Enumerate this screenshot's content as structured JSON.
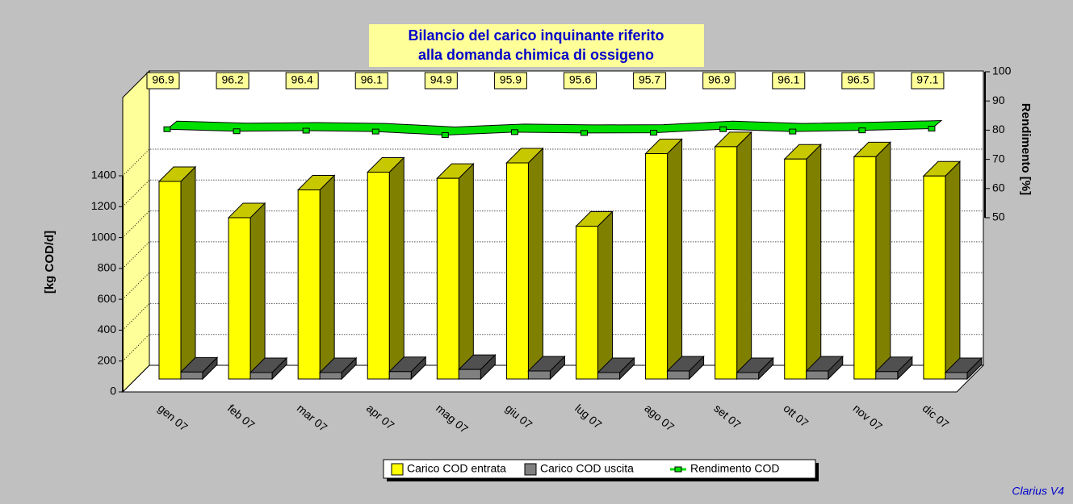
{
  "chart_data": {
    "type": "bar",
    "title": [
      "Bilancio del carico inquinante riferito",
      "alla domanda chimica di ossigeno"
    ],
    "y_label": "[kg COD/d]",
    "y2_label": "Rendimento [%]",
    "footer": "Clarius V4",
    "categories": [
      "gen 07",
      "feb 07",
      "mar 07",
      "apr 07",
      "mag 07",
      "giu 07",
      "lug 07",
      "ago 07",
      "set 07",
      "ott 07",
      "nov 07",
      "dic 07"
    ],
    "series": [
      {
        "name": "Carico COD entrata",
        "color": "#ffff00",
        "values": [
          1280,
          1045,
          1225,
          1340,
          1300,
          1400,
          990,
          1460,
          1505,
          1425,
          1440,
          1315
        ]
      },
      {
        "name": "Carico COD uscita",
        "color": "#808080",
        "values": [
          45,
          42,
          42,
          48,
          62,
          52,
          42,
          52,
          42,
          52,
          48,
          42
        ]
      },
      {
        "name": "Rendimento COD",
        "color": "#00e000",
        "axis": "y2",
        "values": [
          96.9,
          96.2,
          96.4,
          96.1,
          94.9,
          95.9,
          95.6,
          95.7,
          96.9,
          96.1,
          96.5,
          97.1
        ]
      }
    ],
    "ylim": [
      0,
      1400
    ],
    "yticks": [
      0,
      200,
      400,
      600,
      800,
      1000,
      1200,
      1400
    ],
    "y2lim": [
      50,
      100
    ],
    "y2ticks": [
      50,
      60,
      70,
      80,
      90,
      100
    ],
    "grid": true
  }
}
